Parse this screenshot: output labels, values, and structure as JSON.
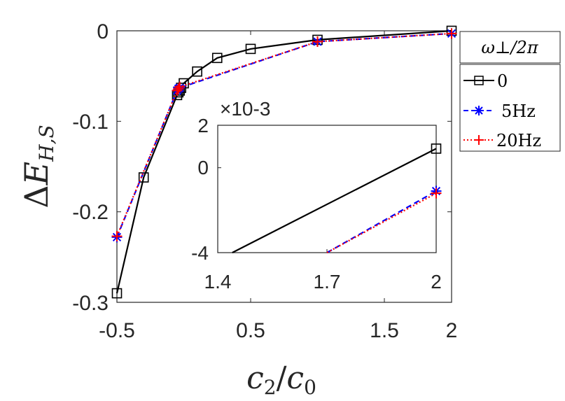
{
  "chart_data": [
    {
      "type": "line",
      "xlabel": "c2/c0",
      "ylabel": "ΔE_H,S",
      "xlim": [
        -0.5,
        2
      ],
      "ylim": [
        -0.3,
        0
      ],
      "x_ticks": [
        "-0.5",
        "0.5",
        "1.5",
        "2"
      ],
      "y_ticks": [
        "0",
        "-0.1",
        "-0.2",
        "-0.3"
      ],
      "legend": {
        "title": "ω⊥/2π",
        "placement": "outside-right",
        "entries": [
          "0",
          "5Hz",
          "20Hz"
        ]
      },
      "series": [
        {
          "name": "0",
          "color": "#000000",
          "marker": "square",
          "x": [
            -0.5,
            -0.3,
            -0.05,
            -0.04,
            -0.03,
            -0.02,
            0.0,
            0.1,
            0.25,
            0.5,
            1.0,
            2.0
          ],
          "y": [
            -0.29,
            -0.162,
            -0.071,
            -0.068,
            -0.066,
            -0.063,
            -0.058,
            -0.045,
            -0.03,
            -0.02,
            -0.01,
            0.0
          ]
        },
        {
          "name": "5Hz",
          "color": "#0000ff",
          "marker": "asterisk",
          "dash": "dashed",
          "x": [
            -0.5,
            -0.05,
            -0.04,
            -0.03,
            1.0,
            2.0
          ],
          "y": [
            -0.228,
            -0.066,
            -0.064,
            -0.063,
            -0.012,
            -0.003
          ]
        },
        {
          "name": "20Hz",
          "color": "#ff0000",
          "marker": "plus",
          "dash": "dotted",
          "x": [
            -0.5,
            -0.05,
            -0.04,
            -0.03,
            1.0,
            2.0
          ],
          "y": [
            -0.227,
            -0.066,
            -0.064,
            -0.062,
            -0.012,
            -0.003
          ]
        }
      ]
    },
    {
      "type": "line",
      "role": "inset",
      "scale_label": "×10-3",
      "xlim": [
        1.4,
        2
      ],
      "ylim": [
        -0.004,
        0.002
      ],
      "x_ticks": [
        "1.4",
        "1.7",
        "2"
      ],
      "y_ticks": [
        "2",
        "0",
        "-4"
      ],
      "series": [
        {
          "name": "0",
          "color": "#000000",
          "marker": "square",
          "x": [
            1.44,
            2.0
          ],
          "y": [
            -0.004,
            0.0009
          ]
        },
        {
          "name": "5Hz",
          "color": "#0000ff",
          "marker": "asterisk",
          "dash": "dashed",
          "x": [
            1.7,
            2.0
          ],
          "y": [
            -0.004,
            -0.0011
          ]
        },
        {
          "name": "20Hz",
          "color": "#ff0000",
          "marker": "plus",
          "dash": "dotted",
          "x": [
            1.7,
            2.0
          ],
          "y": [
            -0.004,
            -0.0012
          ]
        }
      ]
    }
  ]
}
